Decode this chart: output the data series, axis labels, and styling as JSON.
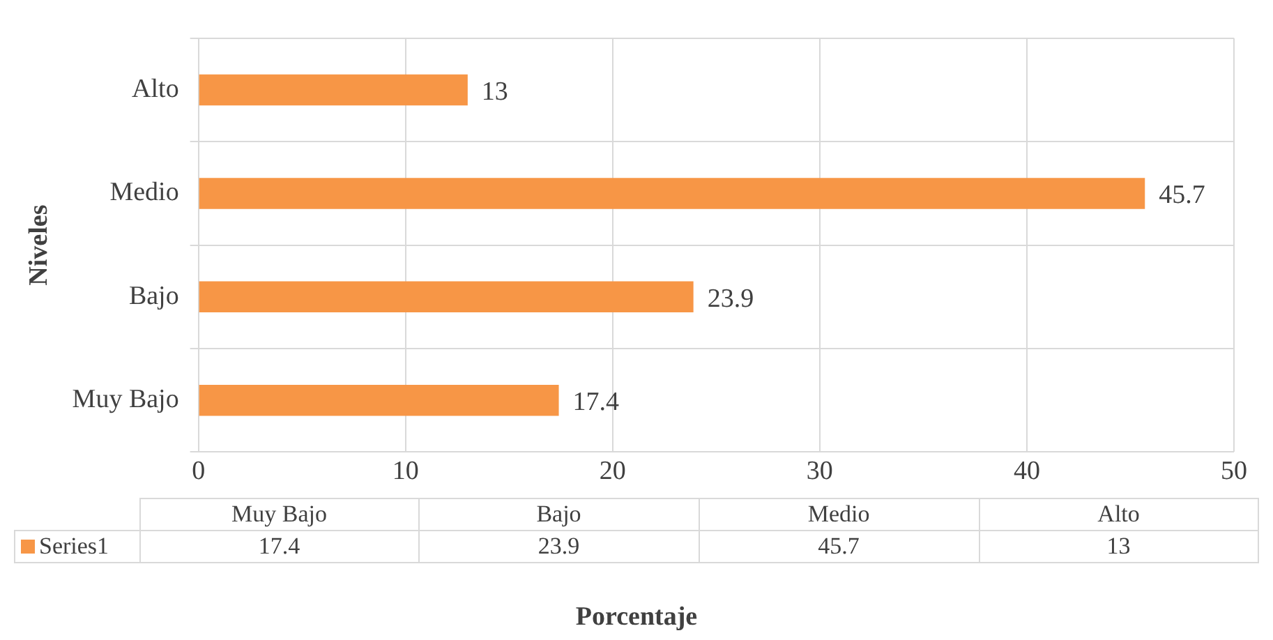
{
  "chart_data": {
    "type": "bar",
    "orientation": "horizontal",
    "xlabel": "Porcentaje",
    "ylabel": "Niveles",
    "categories": [
      "Alto",
      "Medio",
      "Bajo",
      "Muy Bajo"
    ],
    "series": [
      {
        "name": "Series1",
        "color": "#f79646",
        "values": [
          13,
          45.7,
          23.9,
          17.4
        ]
      }
    ],
    "xlim": [
      0,
      50
    ],
    "xticks": [
      0,
      10,
      20,
      30,
      40,
      50
    ],
    "grid": true,
    "data_labels": true,
    "annotations": [
      "17.4",
      "23.9",
      "45.7",
      "13"
    ]
  }
}
